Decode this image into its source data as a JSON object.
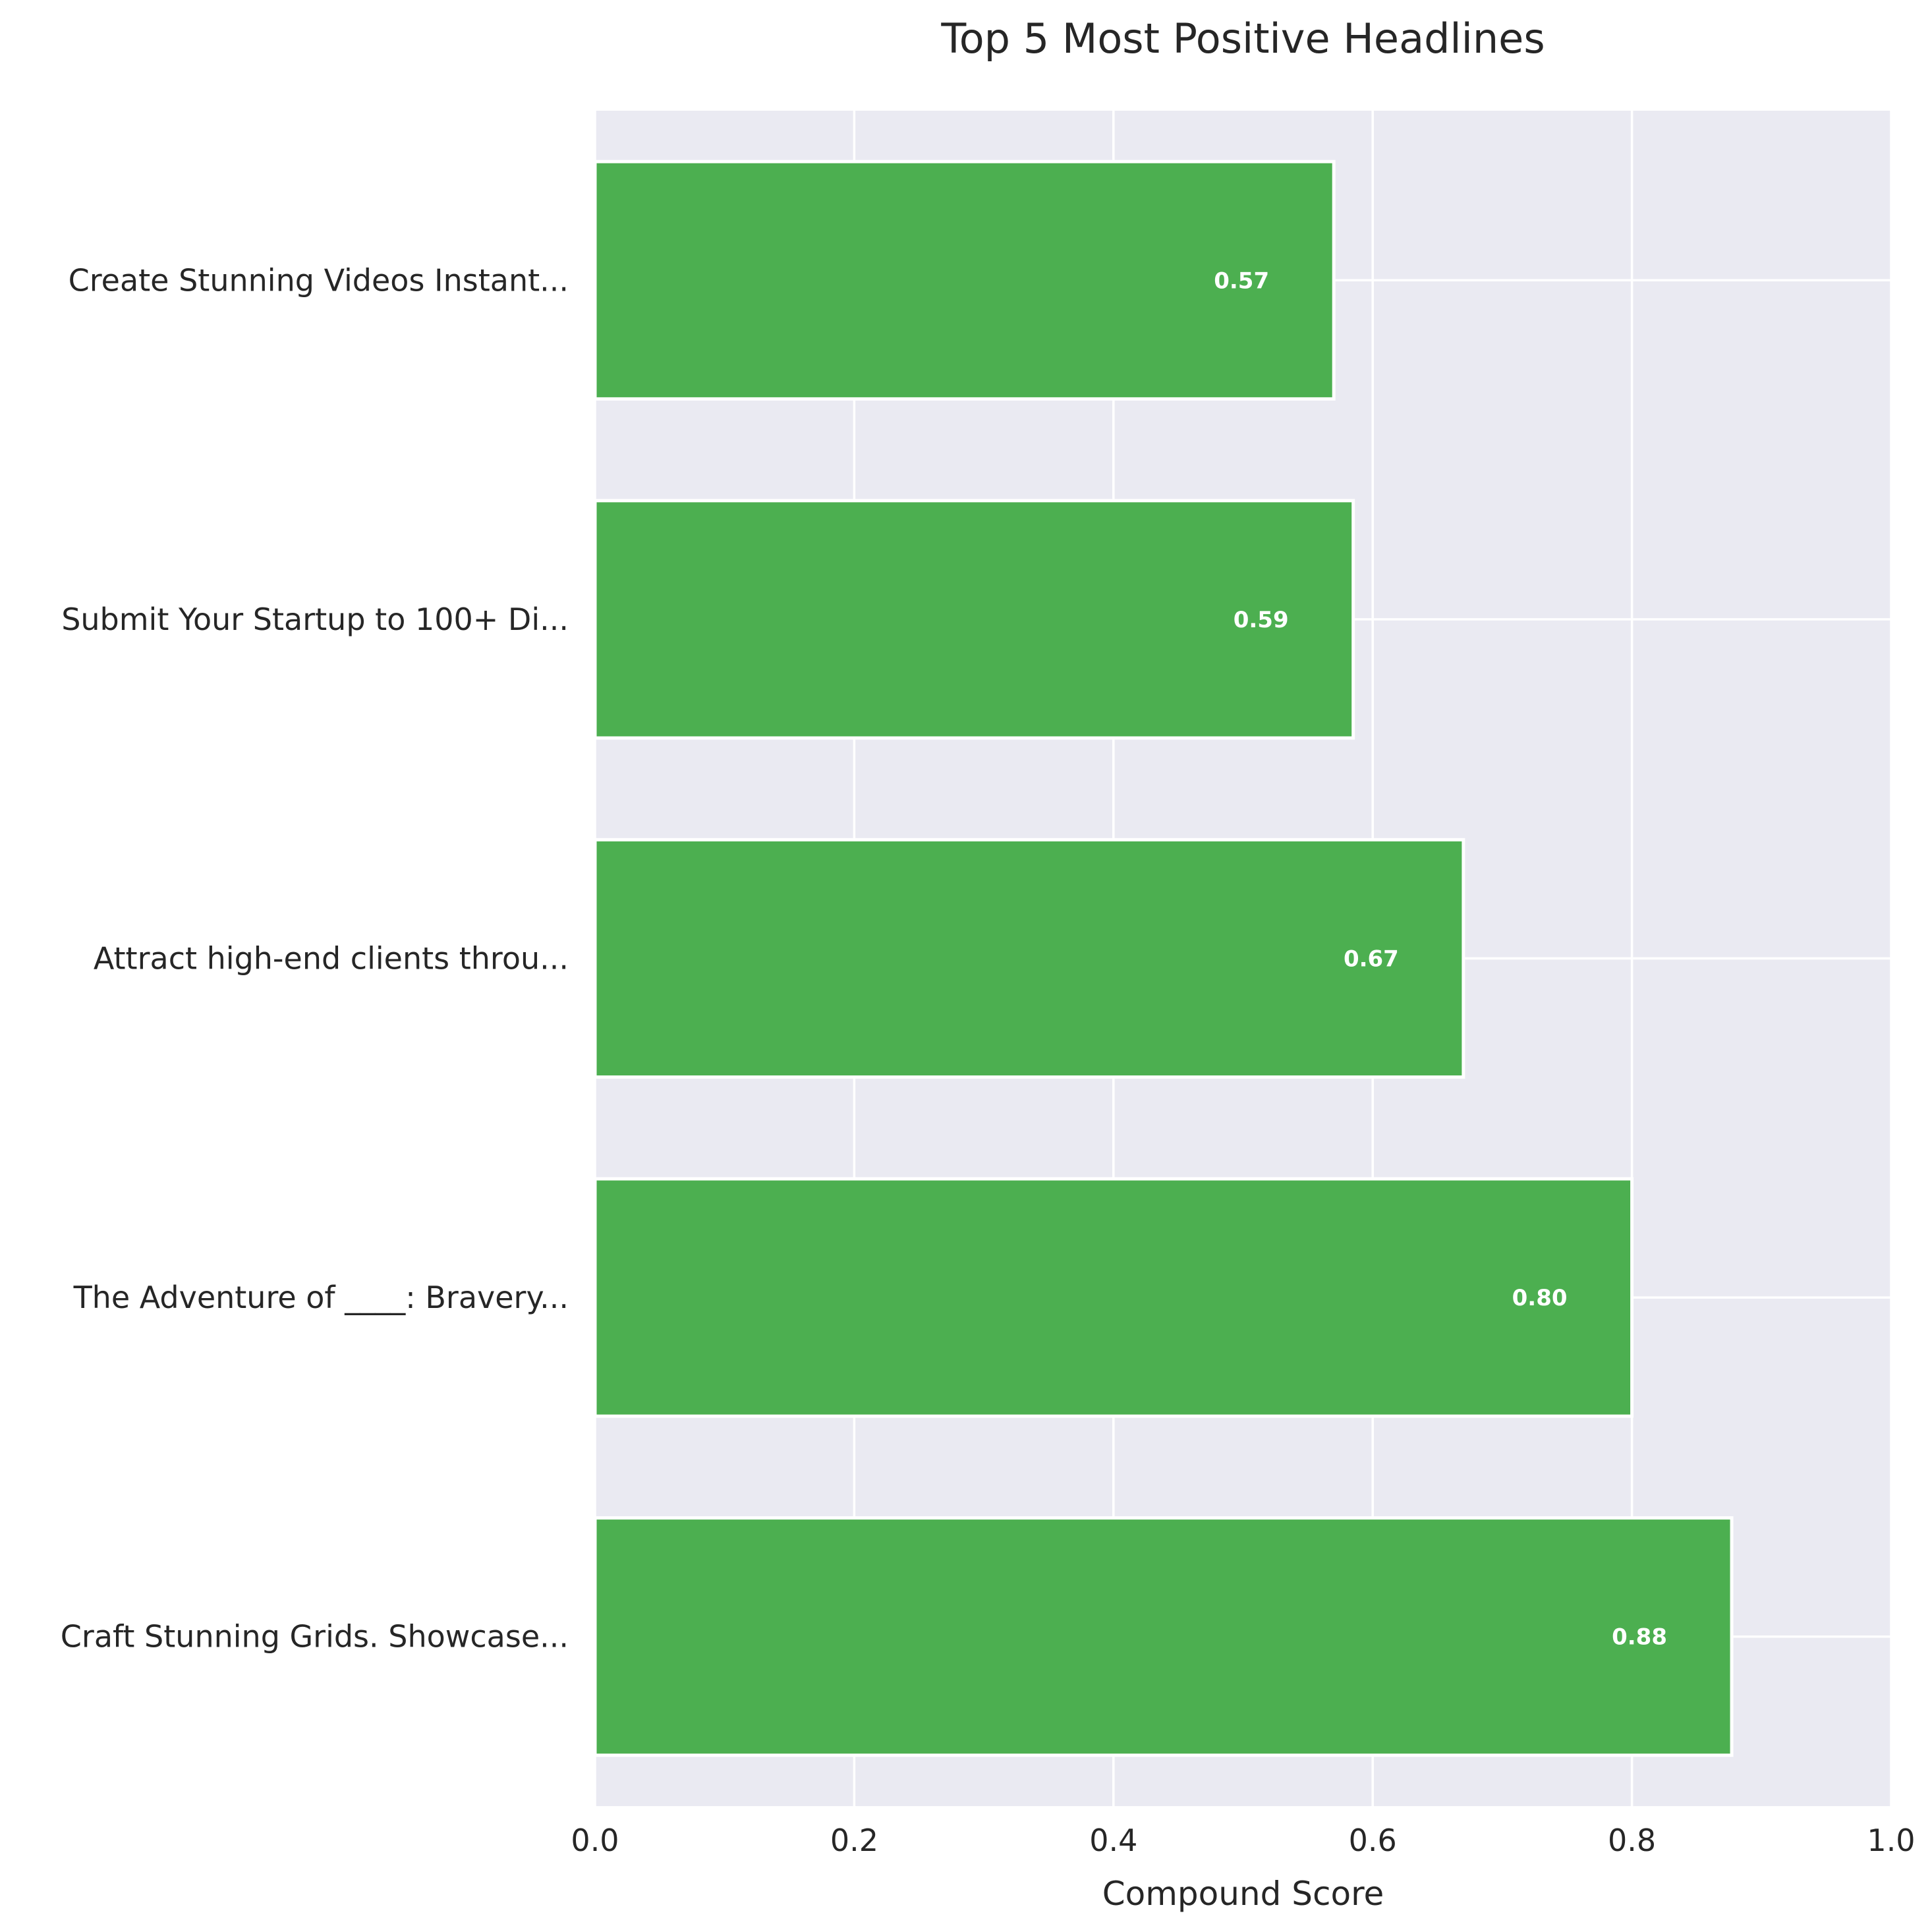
{
  "chart_data": {
    "type": "bar",
    "orientation": "horizontal",
    "title": "Top 5 Most Positive Headlines",
    "xlabel": "Compound Score",
    "ylabel": "",
    "xlim": [
      0,
      1.0
    ],
    "xticks": [
      "0.0",
      "0.2",
      "0.4",
      "0.6",
      "0.8",
      "1.0"
    ],
    "grid": true,
    "categories": [
      "Create Stunning Videos Instant...",
      "Submit Your Startup to 100+ Di...",
      "Attract high-end clients throu...",
      "The Adventure of ____: Bravery...",
      "Craft Stunning Grids. Showcase..."
    ],
    "values": [
      0.57,
      0.585,
      0.67,
      0.8,
      0.877
    ],
    "data_labels": [
      "0.57",
      "0.59",
      "0.67",
      "0.80",
      "0.88"
    ],
    "bar_color": "#4caf50",
    "plot_background": "#eaeaf2",
    "grid_color": "#ffffff"
  }
}
